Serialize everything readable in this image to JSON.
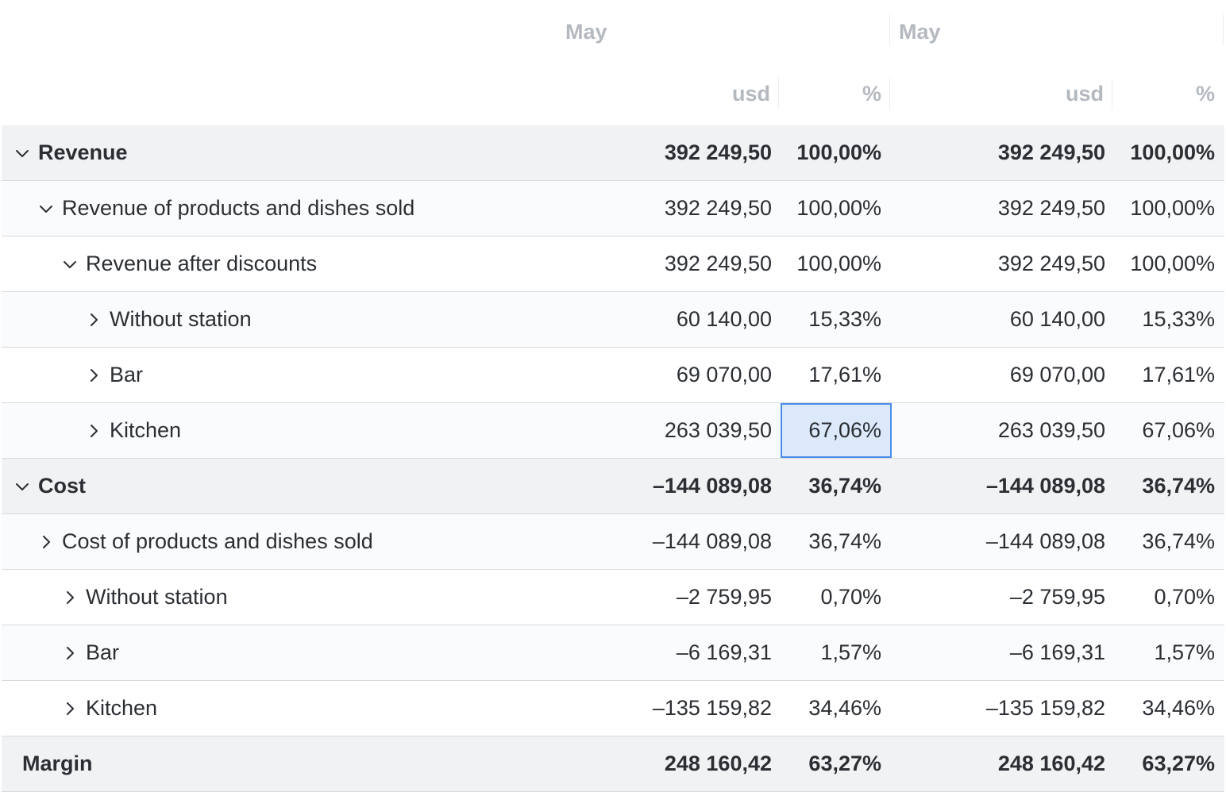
{
  "header": {
    "periods": [
      {
        "month": "May",
        "usd_label": "usd",
        "pct_label": "%"
      },
      {
        "month": "May",
        "usd_label": "usd",
        "pct_label": "%"
      }
    ]
  },
  "rows": [
    {
      "label": "Revenue",
      "level": 0,
      "toggle": "chevron-down-icon",
      "style": "group-bold",
      "values": [
        {
          "usd": "392 249,50",
          "pct": "100,00%"
        },
        {
          "usd": "392 249,50",
          "pct": "100,00%"
        }
      ]
    },
    {
      "label": "Revenue of products and dishes sold",
      "level": 1,
      "toggle": "chevron-down-icon",
      "style": "alt",
      "values": [
        {
          "usd": "392 249,50",
          "pct": "100,00%"
        },
        {
          "usd": "392 249,50",
          "pct": "100,00%"
        }
      ]
    },
    {
      "label": "Revenue after discounts",
      "level": 2,
      "toggle": "chevron-down-icon",
      "style": "item",
      "values": [
        {
          "usd": "392 249,50",
          "pct": "100,00%"
        },
        {
          "usd": "392 249,50",
          "pct": "100,00%"
        }
      ]
    },
    {
      "label": "Without station",
      "level": 3,
      "toggle": "chevron-right-icon",
      "style": "alt",
      "values": [
        {
          "usd": "60 140,00",
          "pct": "15,33%"
        },
        {
          "usd": "60 140,00",
          "pct": "15,33%"
        }
      ]
    },
    {
      "label": "Bar",
      "level": 3,
      "toggle": "chevron-right-icon",
      "style": "item",
      "values": [
        {
          "usd": "69 070,00",
          "pct": "17,61%"
        },
        {
          "usd": "69 070,00",
          "pct": "17,61%"
        }
      ]
    },
    {
      "label": "Kitchen",
      "level": 3,
      "toggle": "chevron-right-icon",
      "style": "alt",
      "selected_cell": "pct1",
      "values": [
        {
          "usd": "263 039,50",
          "pct": "67,06%"
        },
        {
          "usd": "263 039,50",
          "pct": "67,06%"
        }
      ]
    },
    {
      "label": "Cost",
      "level": 0,
      "toggle": "chevron-down-icon",
      "style": "group-bold",
      "values": [
        {
          "usd": "–144 089,08",
          "pct": "36,74%"
        },
        {
          "usd": "–144 089,08",
          "pct": "36,74%"
        }
      ]
    },
    {
      "label": "Cost of products and dishes sold",
      "level": 1,
      "toggle": "chevron-right-icon",
      "style": "alt",
      "values": [
        {
          "usd": "–144 089,08",
          "pct": "36,74%"
        },
        {
          "usd": "–144 089,08",
          "pct": "36,74%"
        }
      ]
    },
    {
      "label": "Without station",
      "level": 2,
      "toggle": "chevron-right-icon",
      "style": "item",
      "values": [
        {
          "usd": "–2 759,95",
          "pct": "0,70%"
        },
        {
          "usd": "–2 759,95",
          "pct": "0,70%"
        }
      ]
    },
    {
      "label": "Bar",
      "level": 2,
      "toggle": "chevron-right-icon",
      "style": "alt",
      "values": [
        {
          "usd": "–6 169,31",
          "pct": "1,57%"
        },
        {
          "usd": "–6 169,31",
          "pct": "1,57%"
        }
      ]
    },
    {
      "label": "Kitchen",
      "level": 2,
      "toggle": "chevron-right-icon",
      "style": "item",
      "values": [
        {
          "usd": "–135 159,82",
          "pct": "34,46%"
        },
        {
          "usd": "–135 159,82",
          "pct": "34,46%"
        }
      ]
    },
    {
      "label": "Margin",
      "level": 0,
      "toggle": "",
      "style": "group-bold",
      "values": [
        {
          "usd": "248 160,42",
          "pct": "63,27%"
        },
        {
          "usd": "248 160,42",
          "pct": "63,27%"
        }
      ]
    }
  ],
  "colors": {
    "header_text": "#b4b9bf",
    "group_background": "#f1f2f4",
    "selection_fill": "#dce9fb",
    "selection_border": "#4a8ee8"
  }
}
